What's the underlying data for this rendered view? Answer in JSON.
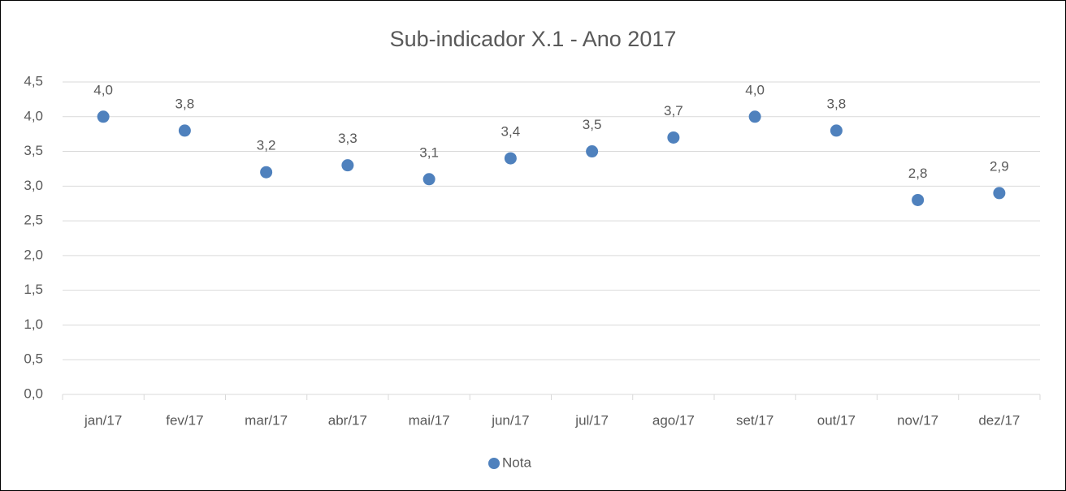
{
  "chart_data": {
    "type": "dot",
    "title": "Sub-indicador X.1 - Ano 2017",
    "categories": [
      "jan/17",
      "fev/17",
      "mar/17",
      "abr/17",
      "mai/17",
      "jun/17",
      "jul/17",
      "ago/17",
      "set/17",
      "out/17",
      "nov/17",
      "dez/17"
    ],
    "series": [
      {
        "name": "Nota",
        "color": "#4f81bd",
        "values": [
          4.0,
          3.8,
          3.2,
          3.3,
          3.1,
          3.4,
          3.5,
          3.7,
          4.0,
          3.8,
          2.8,
          2.9
        ],
        "value_labels": [
          "4,0",
          "3,8",
          "3,2",
          "3,3",
          "3,1",
          "3,4",
          "3,5",
          "3,7",
          "4,0",
          "3,8",
          "2,8",
          "2,9"
        ]
      }
    ],
    "ylim": [
      0,
      4.5
    ],
    "yticks": [
      {
        "value": 0,
        "label": "0,0"
      },
      {
        "value": 0.5,
        "label": "0,5"
      },
      {
        "value": 1,
        "label": "1,0"
      },
      {
        "value": 1.5,
        "label": "1,5"
      },
      {
        "value": 2,
        "label": "2,0"
      },
      {
        "value": 2.5,
        "label": "2,5"
      },
      {
        "value": 3,
        "label": "3,0"
      },
      {
        "value": 3.5,
        "label": "3,5"
      },
      {
        "value": 4,
        "label": "4,0"
      },
      {
        "value": 4.5,
        "label": "4,5"
      }
    ],
    "grid": true,
    "legend": "bottom"
  }
}
